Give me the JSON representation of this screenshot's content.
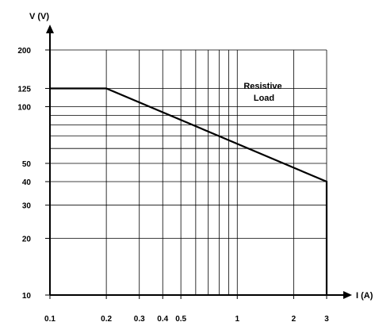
{
  "chart_data": {
    "type": "line",
    "title": "",
    "xlabel": "I (A)",
    "ylabel": "V (V)",
    "x_scale": "log",
    "y_scale": "log",
    "xlim": [
      0.1,
      3
    ],
    "ylim": [
      10,
      200
    ],
    "x_ticks": [
      0.1,
      0.2,
      0.3,
      0.4,
      0.5,
      1,
      2,
      3
    ],
    "x_tick_labels": [
      "0.1",
      "0.2",
      "0.3",
      "0.4",
      "0.5",
      "1",
      "2",
      "3"
    ],
    "y_ticks": [
      10,
      20,
      30,
      40,
      50,
      100,
      125,
      200
    ],
    "y_tick_labels": [
      "10",
      "20",
      "30",
      "40",
      "50",
      "100",
      "125",
      "200"
    ],
    "x_grid": [
      0.2,
      0.3,
      0.4,
      0.5,
      0.6,
      0.7,
      0.8,
      0.9,
      1,
      2,
      3
    ],
    "y_grid": [
      20,
      30,
      40,
      50,
      60,
      70,
      80,
      90,
      100,
      125,
      200
    ],
    "grid": true,
    "legend": "none",
    "series": [
      {
        "x": [
          0.1,
          0.2,
          3,
          3
        ],
        "y": [
          125,
          125,
          40,
          10
        ]
      }
    ],
    "annotations": [
      {
        "text_lines": [
          "Resistive",
          "Load"
        ]
      }
    ],
    "line_color": "#000000",
    "grid_color": "#000000"
  }
}
